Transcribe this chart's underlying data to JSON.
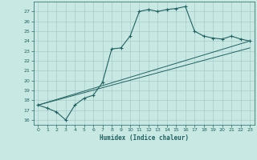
{
  "xlabel": "Humidex (Indice chaleur)",
  "ylabel": "",
  "xlim": [
    -0.5,
    23.5
  ],
  "ylim": [
    15.5,
    28.0
  ],
  "yticks": [
    16,
    17,
    18,
    19,
    20,
    21,
    22,
    23,
    24,
    25,
    26,
    27
  ],
  "xticks": [
    0,
    1,
    2,
    3,
    4,
    5,
    6,
    7,
    8,
    9,
    10,
    11,
    12,
    13,
    14,
    15,
    16,
    17,
    18,
    19,
    20,
    21,
    22,
    23
  ],
  "bg_color": "#c8e8e4",
  "grid_color": "#a8cccc",
  "line_color": "#246060",
  "line1_x": [
    0,
    1,
    2,
    3,
    4,
    5,
    6,
    7,
    8,
    9,
    10,
    11,
    12,
    13,
    14,
    15,
    16,
    17,
    18,
    19,
    20,
    21,
    22,
    23
  ],
  "line1_y": [
    17.5,
    17.2,
    16.8,
    16.0,
    17.5,
    18.2,
    18.5,
    19.8,
    23.2,
    23.3,
    24.5,
    27.0,
    27.2,
    27.0,
    27.2,
    27.3,
    27.5,
    25.0,
    24.5,
    24.3,
    24.2,
    24.5,
    24.2,
    24.0
  ],
  "line2_x": [
    0,
    23
  ],
  "line2_y": [
    17.5,
    24.0
  ],
  "line3_x": [
    0,
    23
  ],
  "line3_y": [
    17.5,
    23.3
  ]
}
